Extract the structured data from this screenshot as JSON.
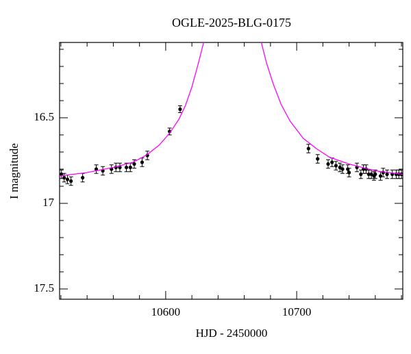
{
  "chart_data": {
    "type": "scatter",
    "title": "OGLE-2025-BLG-0175",
    "xlabel": "HJD - 2450000",
    "ylabel": "I magnitude",
    "xlim": [
      10519,
      10781
    ],
    "ylim": [
      17.56,
      16.06
    ],
    "inverted_y": true,
    "xticks": [
      10600,
      10700
    ],
    "yticks": [
      16.5,
      17,
      17.5
    ],
    "xminorticks": [
      10520,
      10540,
      10560,
      10580,
      10620,
      10640,
      10660,
      10680,
      10720,
      10740,
      10760,
      10780
    ],
    "yminorticks": [
      16.1,
      16.2,
      16.3,
      16.4,
      16.6,
      16.7,
      16.8,
      16.9,
      17.1,
      17.2,
      17.3,
      17.4
    ],
    "series": [
      {
        "type": "errorbar",
        "color": "#000000",
        "x": [
          10520.4,
          10522.5,
          10525,
          10527.7,
          10536.6,
          10547,
          10552,
          10558.6,
          10562,
          10565,
          10570,
          10573,
          10576,
          10582,
          10586,
          10603,
          10611,
          10709,
          10716,
          10724,
          10727,
          10730,
          10733,
          10735,
          10739,
          10740,
          10746,
          10749,
          10751,
          10753,
          10755,
          10757,
          10759,
          10760,
          10764,
          10766,
          10769,
          10773,
          10776,
          10778,
          10780
        ],
        "values": [
          16.83,
          16.85,
          16.86,
          16.87,
          16.85,
          16.8,
          16.81,
          16.8,
          16.79,
          16.79,
          16.79,
          16.79,
          16.77,
          16.76,
          16.72,
          16.58,
          16.45,
          16.68,
          16.74,
          16.77,
          16.76,
          16.78,
          16.79,
          16.8,
          16.8,
          16.82,
          16.79,
          16.83,
          16.8,
          16.8,
          16.83,
          16.83,
          16.84,
          16.83,
          16.84,
          16.82,
          16.83,
          16.83,
          16.83,
          16.83,
          16.83
        ],
        "errors": [
          0.025,
          0.025,
          0.025,
          0.025,
          0.025,
          0.025,
          0.025,
          0.025,
          0.025,
          0.025,
          0.025,
          0.025,
          0.025,
          0.025,
          0.025,
          0.02,
          0.02,
          0.025,
          0.025,
          0.025,
          0.025,
          0.025,
          0.025,
          0.025,
          0.025,
          0.025,
          0.025,
          0.025,
          0.025,
          0.025,
          0.025,
          0.025,
          0.025,
          0.025,
          0.025,
          0.025,
          0.025,
          0.025,
          0.025,
          0.025,
          0.025
        ]
      },
      {
        "type": "line",
        "color": "#ff00ff",
        "x": [
          10519,
          10540,
          10560,
          10575,
          10585,
          10595,
          10603,
          10610,
          10615,
          10620,
          10625,
          10629,
          10650,
          10673,
          10677,
          10682,
          10688,
          10695,
          10705,
          10715,
          10725,
          10740,
          10760,
          10781
        ],
        "values": [
          16.84,
          16.82,
          16.79,
          16.76,
          16.72,
          16.66,
          16.59,
          16.51,
          16.43,
          16.32,
          16.18,
          16.06,
          null,
          16.06,
          16.18,
          16.3,
          16.42,
          16.52,
          16.62,
          16.68,
          16.73,
          16.77,
          16.81,
          16.83
        ]
      }
    ]
  }
}
